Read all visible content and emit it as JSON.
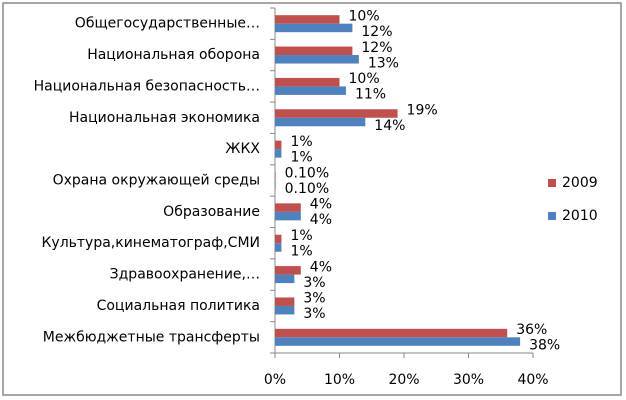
{
  "chart_data": {
    "type": "hbar",
    "categories": [
      "Общегосударственные…",
      "Национальная оборона",
      "Национальная безопасность…",
      "Национальная экономика",
      "ЖКХ",
      "Охрана окружающей среды",
      "Образование",
      "Культура,кинематограф,СМИ",
      "Здравоохранение,…",
      "Социальная политика",
      "Межбюджетные трансферты"
    ],
    "series": [
      {
        "name": "2009",
        "color": "#c0504d",
        "values": [
          10,
          12,
          10,
          19,
          1,
          0.1,
          4,
          1,
          4,
          3,
          36
        ],
        "value_labels": [
          "10%",
          "12%",
          "10%",
          "19%",
          "1%",
          "0.10%",
          "4%",
          "1%",
          "4%",
          "3%",
          "36%"
        ]
      },
      {
        "name": "2010",
        "color": "#4f81bd",
        "values": [
          12,
          13,
          11,
          14,
          1,
          0.1,
          4,
          1,
          3,
          3,
          38
        ],
        "value_labels": [
          "12%",
          "13%",
          "11%",
          "14%",
          "1%",
          "0.10%",
          "4%",
          "1%",
          "3%",
          "3%",
          "38%"
        ]
      }
    ],
    "xlim": [
      0,
      40
    ],
    "xticks": [
      {
        "value": 0,
        "label": "0%"
      },
      {
        "value": 10,
        "label": "10%"
      },
      {
        "value": 20,
        "label": "20%"
      },
      {
        "value": 30,
        "label": "30%"
      },
      {
        "value": 40,
        "label": "40%"
      }
    ],
    "legend": "right"
  }
}
